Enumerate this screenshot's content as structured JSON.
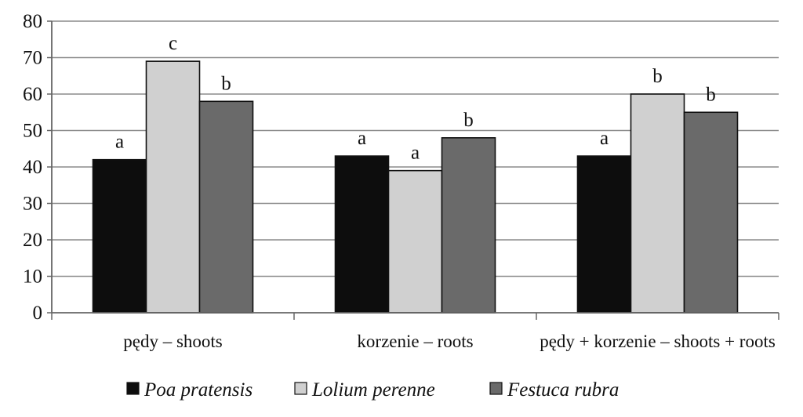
{
  "chart_data": {
    "type": "bar",
    "title": "",
    "xlabel": "",
    "ylabel": "",
    "ylim": [
      0,
      80
    ],
    "yticks": [
      0,
      10,
      20,
      30,
      40,
      50,
      60,
      70,
      80
    ],
    "grid": true,
    "legend_position": "bottom",
    "categories": [
      "pędy – shoots",
      "korzenie – roots",
      "pędy + korzenie – shoots + roots"
    ],
    "series": [
      {
        "name": "Poa pratensis",
        "color": "#0d0d0d",
        "values": [
          42,
          43,
          43
        ],
        "labels": [
          "a",
          "a",
          "a"
        ]
      },
      {
        "name": "Lolium perenne",
        "color": "#d0d0d0",
        "values": [
          69,
          39,
          60
        ],
        "labels": [
          "c",
          "a",
          "b"
        ]
      },
      {
        "name": "Festuca rubra",
        "color": "#6a6a6a",
        "values": [
          58,
          48,
          55
        ],
        "labels": [
          "b",
          "b",
          "b"
        ]
      }
    ]
  }
}
